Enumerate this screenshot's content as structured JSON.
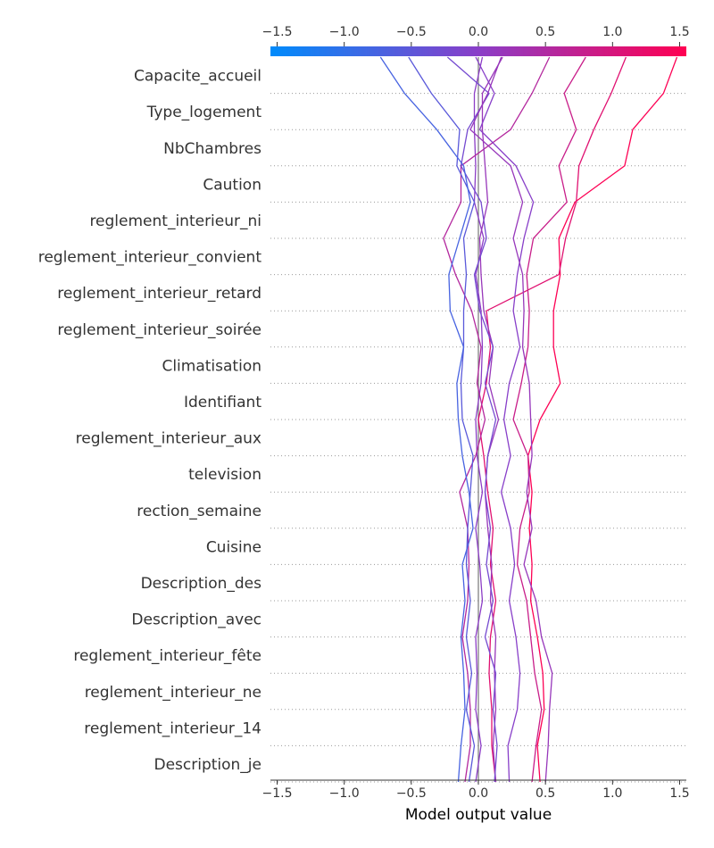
{
  "chart_data": {
    "type": "line",
    "subtype": "shap-decision-plot",
    "xlabel": "Model output value",
    "xlim": [
      -1.55,
      1.55
    ],
    "xticks": [
      -1.5,
      -1.0,
      -0.5,
      0.0,
      0.5,
      1.0,
      1.5
    ],
    "xtick_labels": [
      "−1.5",
      "−1.0",
      "−0.5",
      "0.0",
      "0.5",
      "1.0",
      "1.5"
    ],
    "base_value": 0.0,
    "colorbar": {
      "min": -1.5,
      "max": 1.5,
      "low_color": "#008bfb",
      "mid_color": "#8a3ec8",
      "high_color": "#ff0052"
    },
    "features": [
      "Capacite_accueil",
      "Type_logement",
      "NbChambres",
      "Caution",
      "reglement_interieur_ni",
      "reglement_interieur_convient",
      "reglement_interieur_retard",
      "reglement_interieur_soirée",
      "Climatisation",
      "Identifiant",
      "reglement_interieur_aux",
      "television",
      "rection_semaine",
      "Cuisine",
      "Description_des",
      "Description_avec",
      "reglement_interieur_fête",
      "reglement_interieur_ne",
      "reglement_interieur_14",
      "Description_je"
    ],
    "series": [
      {
        "values": [
          0.03,
          -0.03,
          -0.03,
          -0.02,
          -0.03,
          0.04,
          -0.02,
          0.02,
          0.03,
          0.02,
          -0.02,
          -0.01,
          0.03,
          -0.02,
          0.01,
          0.03,
          -0.02,
          -0.01,
          -0.02,
          0.02,
          -0.02
        ]
      },
      {
        "values": [
          1.48,
          1.38,
          1.15,
          1.09,
          0.72,
          0.6,
          0.61,
          0.56,
          0.56,
          0.61,
          0.46,
          0.37,
          0.4,
          0.38,
          0.4,
          0.39,
          0.44,
          0.48,
          0.49,
          0.44,
          0.46
        ]
      },
      {
        "values": [
          1.1,
          0.99,
          0.86,
          0.75,
          0.73,
          0.65,
          0.6,
          0.06,
          0.09,
          0.06,
          0.0,
          0.04,
          0.07,
          0.11,
          0.09,
          0.13,
          0.09,
          0.08,
          0.1,
          0.1,
          0.13
        ]
      },
      {
        "values": [
          0.8,
          0.64,
          0.73,
          0.6,
          0.66,
          0.41,
          0.36,
          0.38,
          0.37,
          0.32,
          0.26,
          0.37,
          0.38,
          0.31,
          0.29,
          0.36,
          0.39,
          0.42,
          0.47,
          0.43,
          0.4
        ]
      },
      {
        "values": [
          0.53,
          0.4,
          0.24,
          -0.13,
          -0.13,
          -0.26,
          -0.17,
          -0.05,
          0.02,
          -0.01,
          0.05,
          -0.02,
          -0.14,
          -0.08,
          -0.07,
          -0.08,
          -0.12,
          -0.08,
          -0.06,
          -0.06,
          -0.1
        ]
      },
      {
        "values": [
          0.18,
          0.03,
          0.03,
          0.05,
          0.07,
          0.01,
          0.02,
          0.04,
          0.11,
          0.08,
          0.15,
          0.07,
          0.05,
          0.07,
          0.1,
          0.09,
          0.13,
          0.12,
          0.13,
          0.11,
          0.13
        ]
      },
      {
        "values": [
          -0.02,
          0.12,
          0.01,
          0.28,
          0.41,
          0.34,
          0.29,
          0.26,
          0.31,
          0.23,
          0.19,
          0.24,
          0.17,
          0.24,
          0.27,
          0.23,
          0.28,
          0.31,
          0.29,
          0.22,
          0.23
        ]
      },
      {
        "values": [
          -0.23,
          0.08,
          -0.08,
          -0.13,
          0.02,
          0.06,
          -0.03,
          0.01,
          0.11,
          0.05,
          0.13,
          0.07,
          0.05,
          0.09,
          0.06,
          0.11,
          0.05,
          0.13,
          0.11,
          0.14,
          0.12
        ]
      },
      {
        "values": [
          -0.52,
          -0.35,
          -0.14,
          -0.16,
          -0.03,
          -0.11,
          -0.09,
          -0.11,
          -0.11,
          -0.13,
          -0.12,
          -0.04,
          -0.06,
          -0.08,
          -0.09,
          -0.06,
          -0.09,
          -0.05,
          -0.09,
          -0.03,
          -0.07
        ]
      },
      {
        "values": [
          -0.73,
          -0.55,
          -0.31,
          -0.11,
          -0.06,
          -0.14,
          -0.22,
          -0.21,
          -0.11,
          -0.16,
          -0.15,
          -0.12,
          -0.07,
          -0.04,
          -0.12,
          -0.1,
          -0.13,
          -0.11,
          -0.1,
          -0.13,
          -0.15
        ]
      },
      {
        "values": [
          0.17,
          0.07,
          -0.06,
          0.24,
          0.33,
          0.26,
          0.33,
          0.34,
          0.33,
          0.38,
          0.39,
          0.4,
          0.36,
          0.4,
          0.34,
          0.43,
          0.47,
          0.55,
          0.53,
          0.52,
          0.5
        ]
      }
    ]
  }
}
